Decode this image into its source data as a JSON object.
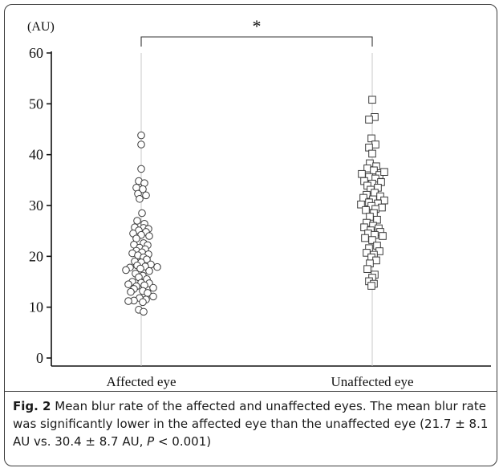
{
  "chart_data": {
    "type": "scatter",
    "unit_label": "(AU)",
    "categories": [
      "Affected eye",
      "Unaffected eye"
    ],
    "ylim": [
      0,
      60
    ],
    "yticks": [
      0,
      10,
      20,
      30,
      40,
      50,
      60
    ],
    "grid": false,
    "significance": "*",
    "series": [
      {
        "category": "Affected eye",
        "marker": "circle",
        "points": [
          [
            0,
            43.8
          ],
          [
            0,
            42.0
          ],
          [
            0,
            37.2
          ],
          [
            -3,
            34.8
          ],
          [
            4,
            34.4
          ],
          [
            -6,
            33.5
          ],
          [
            2,
            33.2
          ],
          [
            -4,
            32.3
          ],
          [
            6,
            32.0
          ],
          [
            -2,
            31.3
          ],
          [
            1,
            28.5
          ],
          [
            -5,
            27.0
          ],
          [
            4,
            26.4
          ],
          [
            -8,
            25.7
          ],
          [
            3,
            25.6
          ],
          [
            9,
            25.4
          ],
          [
            -3,
            25.1
          ],
          [
            6,
            24.8
          ],
          [
            -10,
            24.5
          ],
          [
            0,
            24.2
          ],
          [
            10,
            24.0
          ],
          [
            -6,
            23.5
          ],
          [
            3,
            22.6
          ],
          [
            -9,
            22.3
          ],
          [
            8,
            22.2
          ],
          [
            -2,
            21.7
          ],
          [
            5,
            21.4
          ],
          [
            -6,
            21.1
          ],
          [
            1,
            20.8
          ],
          [
            -11,
            20.6
          ],
          [
            9,
            20.4
          ],
          [
            -4,
            20.2
          ],
          [
            3,
            19.8
          ],
          [
            7,
            19.4
          ],
          [
            -8,
            19.0
          ],
          [
            0,
            18.8
          ],
          [
            12,
            18.4
          ],
          [
            -5,
            18.2
          ],
          [
            5,
            18.0
          ],
          [
            -14,
            17.8
          ],
          [
            20,
            17.9
          ],
          [
            -1,
            17.6
          ],
          [
            -19,
            17.3
          ],
          [
            10,
            17.1
          ],
          [
            -7,
            16.6
          ],
          [
            2,
            16.2
          ],
          [
            -3,
            15.9
          ],
          [
            7,
            15.5
          ],
          [
            -11,
            15.0
          ],
          [
            0,
            14.8
          ],
          [
            10,
            14.7
          ],
          [
            -16,
            14.5
          ],
          [
            4,
            14.3
          ],
          [
            -6,
            14.1
          ],
          [
            15,
            13.8
          ],
          [
            -9,
            13.6
          ],
          [
            2,
            13.2
          ],
          [
            -13,
            13.0
          ],
          [
            8,
            12.8
          ],
          [
            15,
            12.1
          ],
          [
            -2,
            11.8
          ],
          [
            6,
            11.5
          ],
          [
            -9,
            11.3
          ],
          [
            -16,
            11.2
          ],
          [
            2,
            11.0
          ],
          [
            -3,
            9.5
          ],
          [
            3,
            9.1
          ]
        ]
      },
      {
        "category": "Unaffected eye",
        "marker": "square",
        "points": [
          [
            0,
            50.8
          ],
          [
            3,
            47.4
          ],
          [
            -4,
            46.9
          ],
          [
            -1,
            43.2
          ],
          [
            4,
            42.0
          ],
          [
            -4,
            41.4
          ],
          [
            0,
            40.2
          ],
          [
            -3,
            38.3
          ],
          [
            5,
            37.7
          ],
          [
            -6,
            37.3
          ],
          [
            2,
            36.9
          ],
          [
            -13,
            36.2
          ],
          [
            9,
            36.0
          ],
          [
            15,
            36.6
          ],
          [
            -4,
            35.6
          ],
          [
            4,
            35.3
          ],
          [
            -10,
            34.8
          ],
          [
            11,
            34.6
          ],
          [
            0,
            34.3
          ],
          [
            -6,
            33.9
          ],
          [
            7,
            33.5
          ],
          [
            -2,
            33.1
          ],
          [
            3,
            32.5
          ],
          [
            -7,
            32.1
          ],
          [
            10,
            31.8
          ],
          [
            -11,
            31.5
          ],
          [
            1,
            31.2
          ],
          [
            15,
            31.0
          ],
          [
            -4,
            30.6
          ],
          [
            7,
            30.4
          ],
          [
            -14,
            30.2
          ],
          [
            -1,
            29.9
          ],
          [
            12,
            29.6
          ],
          [
            4,
            29.3
          ],
          [
            -8,
            29.1
          ],
          [
            2,
            28.5
          ],
          [
            -3,
            27.8
          ],
          [
            6,
            27.2
          ],
          [
            -7,
            26.6
          ],
          [
            1,
            26.0
          ],
          [
            -10,
            25.7
          ],
          [
            8,
            25.5
          ],
          [
            -2,
            25.1
          ],
          [
            10,
            24.8
          ],
          [
            -5,
            24.5
          ],
          [
            3,
            24.2
          ],
          [
            13,
            24.0
          ],
          [
            -9,
            23.6
          ],
          [
            0,
            23.2
          ],
          [
            6,
            22.1
          ],
          [
            -4,
            21.6
          ],
          [
            9,
            21.0
          ],
          [
            -7,
            20.7
          ],
          [
            2,
            20.3
          ],
          [
            -1,
            19.8
          ],
          [
            5,
            19.2
          ],
          [
            -3,
            18.6
          ],
          [
            -6,
            17.5
          ],
          [
            3,
            16.4
          ],
          [
            0,
            15.8
          ],
          [
            -4,
            15.1
          ],
          [
            2,
            14.6
          ],
          [
            -1,
            14.2
          ]
        ]
      }
    ]
  },
  "caption": {
    "fig_label": "Fig. 2",
    "text_1": " Mean blur rate of the affected and unaffected eyes. The mean blur rate was significantly lower in the affected eye than the unaffected eye (21.7 ± 8.1 AU vs. 30.4 ± 8.7 AU, ",
    "p_symbol": "P",
    "text_2": " < 0.001)"
  }
}
